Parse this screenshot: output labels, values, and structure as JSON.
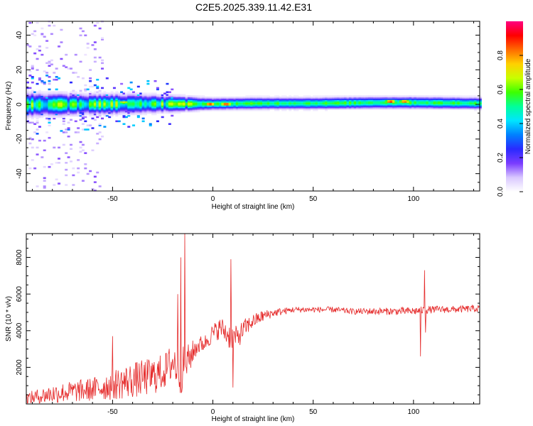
{
  "title": "C2E5.2025.339.11.42.E31",
  "colors": {
    "snr_line": "#e52a2a",
    "axis": "#000000",
    "background": "#ffffff",
    "colormap": [
      "#ffffff",
      "#d9c8ff",
      "#7a3cff",
      "#2a2aff",
      "#0080ff",
      "#00e5ff",
      "#00ff9a",
      "#3cff00",
      "#c8ff00",
      "#ffd000",
      "#ff6a00",
      "#ff0000",
      "#ff0080"
    ]
  },
  "chart_data": [
    {
      "type": "heatmap",
      "name": "spectrogram",
      "xlabel": "Height of straight line (km)",
      "ylabel": "Frequency (Hz)",
      "xlim": [
        -93,
        133
      ],
      "ylim": [
        -50,
        48
      ],
      "xticks": [
        -50,
        0,
        50,
        100
      ],
      "xtick_labels": [
        "-50",
        "0",
        "50",
        "100"
      ],
      "yticks": [
        -40,
        -20,
        0,
        20,
        40
      ],
      "ytick_labels": [
        "-40",
        "-20",
        "0",
        "20",
        "40"
      ],
      "band": {
        "center_hz": [
          [
            -93,
            0
          ],
          [
            -40,
            0.5
          ],
          [
            -20,
            0.5
          ],
          [
            0,
            0.5
          ],
          [
            20,
            0.8
          ],
          [
            50,
            0.8
          ],
          [
            80,
            1.2
          ],
          [
            100,
            1.2
          ],
          [
            133,
            0.8
          ]
        ],
        "halfwidth_hz": [
          [
            -93,
            6
          ],
          [
            -60,
            5
          ],
          [
            -40,
            5
          ],
          [
            -20,
            4
          ],
          [
            0,
            3
          ],
          [
            50,
            3
          ],
          [
            100,
            3
          ],
          [
            133,
            3
          ]
        ]
      },
      "peaks": [
        {
          "x": -2,
          "y": 0,
          "amp": 0.95
        },
        {
          "x": 6,
          "y": 0,
          "amp": 0.95
        },
        {
          "x": 88,
          "y": 1.5,
          "amp": 0.95
        },
        {
          "x": 95,
          "y": 1.5,
          "amp": 0.9
        },
        {
          "x": -45,
          "y": 1,
          "amp": 0.75
        },
        {
          "x": -15,
          "y": 0,
          "amp": 0.7
        }
      ],
      "colorbar": {
        "label": "Normalized spectral amplitude",
        "range": [
          0,
          1
        ],
        "ticks": [
          0.0,
          0.2,
          0.4,
          0.6,
          0.8
        ],
        "tick_labels": [
          "0.0",
          "0.2",
          "0.4",
          "0.6",
          "0.8"
        ]
      }
    },
    {
      "type": "line",
      "name": "snr",
      "xlabel": "Height of straight line (km)",
      "ylabel": "SNR (10 * v/v)",
      "xlim": [
        -93,
        133
      ],
      "ylim": [
        0,
        9300
      ],
      "xticks": [
        -50,
        0,
        50,
        100
      ],
      "xtick_labels": [
        "-50",
        "0",
        "50",
        "100"
      ],
      "yticks": [
        2000,
        4000,
        6000,
        8000
      ],
      "ytick_labels": [
        "2000",
        "4000",
        "6000",
        "8000"
      ],
      "envelope": {
        "x": [
          -93,
          -80,
          -70,
          -60,
          -50,
          -40,
          -30,
          -24,
          -20,
          -16,
          -12,
          -8,
          -4,
          0,
          4,
          8,
          12,
          16,
          20,
          25,
          30,
          35,
          40,
          50,
          60,
          70,
          80,
          90,
          100,
          110,
          120,
          133
        ],
        "base": [
          200,
          400,
          500,
          600,
          800,
          1000,
          1200,
          1500,
          2000,
          1400,
          2200,
          3000,
          3200,
          3700,
          4000,
          3500,
          3400,
          4000,
          4400,
          4700,
          4900,
          5000,
          5100,
          5100,
          5100,
          5000,
          5000,
          5000,
          5000,
          5100,
          5100,
          5150
        ],
        "spread": [
          500,
          800,
          900,
          1000,
          1300,
          1500,
          1600,
          1500,
          1700,
          2000,
          1300,
          800,
          700,
          800,
          900,
          1100,
          1000,
          800,
          600,
          500,
          350,
          300,
          250,
          250,
          250,
          250,
          300,
          300,
          350,
          300,
          300,
          300
        ]
      },
      "spikes": [
        {
          "x": -14,
          "value": 9300
        },
        {
          "x": -16,
          "value": 8000
        },
        {
          "x": -17.5,
          "value": 6000
        },
        {
          "x": 9,
          "value": 7900
        },
        {
          "x": 10,
          "value": 900
        },
        {
          "x": -50,
          "value": 3700
        },
        {
          "x": 103.5,
          "value": 2600
        },
        {
          "x": 105.5,
          "value": 7300
        },
        {
          "x": 106,
          "value": 3900
        }
      ]
    }
  ]
}
